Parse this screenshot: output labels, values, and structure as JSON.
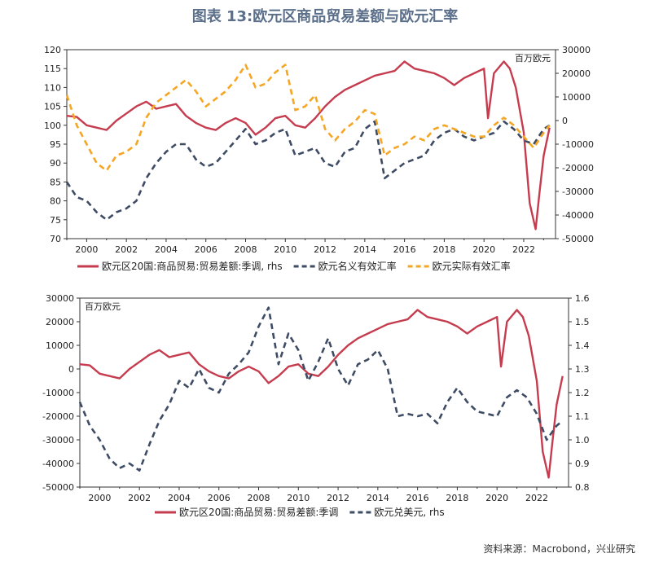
{
  "page": {
    "title": "图表 13:欧元区商品贸易差额与欧元汇率",
    "source": "资料来源：Macrobond，兴业研究"
  },
  "chart_data": [
    {
      "type": "line",
      "left_ticks": [
        "120",
        "115",
        "110",
        "105",
        "100",
        "95",
        "90",
        "85",
        "80",
        "75",
        "70"
      ],
      "left_range": [
        70,
        120
      ],
      "right_ticks": [
        "30000",
        "20000",
        "10000",
        "0",
        "-10000",
        "-20000",
        "-30000",
        "-40000",
        "-50000"
      ],
      "right_range": [
        -50000,
        30000
      ],
      "right_unit": "百万欧元",
      "x_range": [
        1999,
        2023.6
      ],
      "x_ticks": [
        "2000",
        "2002",
        "2004",
        "2006",
        "2008",
        "2010",
        "2012",
        "2014",
        "2016",
        "2018",
        "2020",
        "2022"
      ],
      "series": [
        {
          "name": "欧元区20国:商品贸易:贸易差额:季调, rhs",
          "axis": "right",
          "style": "solid",
          "color": "#c63c4f",
          "x": [
            1999.0,
            1999.5,
            2000.0,
            2000.5,
            2001.0,
            2001.5,
            2002.0,
            2002.5,
            2003.0,
            2003.5,
            2004.0,
            2004.5,
            2005.0,
            2005.5,
            2006.0,
            2006.5,
            2007.0,
            2007.5,
            2008.0,
            2008.5,
            2009.0,
            2009.5,
            2010.0,
            2010.5,
            2011.0,
            2011.5,
            2012.0,
            2012.5,
            2013.0,
            2013.5,
            2014.0,
            2014.5,
            2015.0,
            2015.5,
            2016.0,
            2016.5,
            2017.0,
            2017.5,
            2018.0,
            2018.5,
            2019.0,
            2019.5,
            2020.0,
            2020.2,
            2020.5,
            2021.0,
            2021.3,
            2021.6,
            2022.0,
            2022.3,
            2022.6,
            2022.8,
            2023.0,
            2023.3
          ],
          "y": [
            2000,
            1500,
            -2000,
            -3000,
            -4000,
            0,
            3000,
            6000,
            8000,
            5000,
            6000,
            7000,
            2000,
            -1000,
            -3000,
            -4000,
            -1000,
            1000,
            -1000,
            -6000,
            -3000,
            1000,
            2000,
            -2000,
            -3000,
            1000,
            6000,
            10000,
            13000,
            15000,
            17000,
            19000,
            20000,
            21000,
            25000,
            22000,
            21000,
            20000,
            18000,
            15000,
            18000,
            20000,
            22000,
            1000,
            20000,
            25000,
            22000,
            14000,
            -5000,
            -35000,
            -46000,
            -30000,
            -15000,
            -3000
          ]
        },
        {
          "name": "欧元名义有效汇率",
          "axis": "left",
          "style": "dash",
          "color": "#3e4b64",
          "x": [
            1999.0,
            1999.5,
            2000.0,
            2000.5,
            2001.0,
            2001.5,
            2002.0,
            2002.5,
            2003.0,
            2003.5,
            2004.0,
            2004.5,
            2005.0,
            2005.5,
            2006.0,
            2006.5,
            2007.0,
            2007.5,
            2008.0,
            2008.5,
            2009.0,
            2009.5,
            2010.0,
            2010.5,
            2011.0,
            2011.5,
            2012.0,
            2012.5,
            2013.0,
            2013.5,
            2014.0,
            2014.5,
            2015.0,
            2015.5,
            2016.0,
            2016.5,
            2017.0,
            2017.5,
            2018.0,
            2018.5,
            2019.0,
            2019.5,
            2020.0,
            2020.5,
            2021.0,
            2021.5,
            2022.0,
            2022.5,
            2023.0,
            2023.3
          ],
          "y": [
            85,
            81,
            80,
            77,
            75,
            77,
            78,
            80,
            86,
            90,
            93,
            95,
            95,
            91,
            89,
            90,
            93,
            96,
            99,
            95,
            96,
            98,
            99,
            92,
            93,
            94,
            90,
            89,
            93,
            94,
            99,
            101,
            86,
            88,
            90,
            91,
            92,
            96,
            98,
            99,
            97,
            96,
            97,
            98,
            101,
            99,
            96,
            95,
            99,
            100
          ]
        },
        {
          "name": "欧元实际有效汇率",
          "axis": "left",
          "style": "dash",
          "color": "#f5a623",
          "x": [
            1999.0,
            1999.5,
            2000.0,
            2000.5,
            2001.0,
            2001.5,
            2002.0,
            2002.5,
            2003.0,
            2003.5,
            2004.0,
            2004.5,
            2005.0,
            2005.5,
            2006.0,
            2006.5,
            2007.0,
            2007.5,
            2008.0,
            2008.5,
            2009.0,
            2009.5,
            2010.0,
            2010.5,
            2011.0,
            2011.5,
            2012.0,
            2012.5,
            2013.0,
            2013.5,
            2014.0,
            2014.5,
            2015.0,
            2015.5,
            2016.0,
            2016.5,
            2017.0,
            2017.5,
            2018.0,
            2018.5,
            2019.0,
            2019.5,
            2020.0,
            2020.5,
            2021.0,
            2021.5,
            2022.0,
            2022.5,
            2023.0,
            2023.3
          ],
          "y": [
            108,
            100,
            95,
            90,
            88,
            92,
            93,
            95,
            102,
            106,
            108,
            110,
            112,
            109,
            105,
            107,
            109,
            112,
            116,
            110,
            111,
            114,
            116,
            104,
            105,
            108,
            99,
            96,
            99,
            101,
            104,
            103,
            92,
            94,
            95,
            97,
            96,
            99,
            100,
            99,
            98,
            97,
            97,
            100,
            102,
            100,
            97,
            94,
            98,
            100
          ]
        }
      ]
    },
    {
      "type": "line",
      "left_ticks": [
        "30000",
        "20000",
        "10000",
        "0",
        "-10000",
        "-20000",
        "-30000",
        "-40000",
        "-50000"
      ],
      "left_range": [
        -50000,
        30000
      ],
      "left_unit": "百万欧元",
      "right_ticks": [
        "1.6",
        "1.5",
        "1.4",
        "1.3",
        "1.2",
        "1.1",
        "1.0",
        "0.9",
        "0.8"
      ],
      "right_range": [
        0.8,
        1.6
      ],
      "x_range": [
        1999,
        2023.6
      ],
      "x_ticks": [
        "2000",
        "2002",
        "2004",
        "2006",
        "2008",
        "2010",
        "2012",
        "2014",
        "2016",
        "2018",
        "2020",
        "2022"
      ],
      "series": [
        {
          "name": "欧元区20国:商品贸易:贸易差额:季调",
          "axis": "left",
          "style": "solid",
          "color": "#c63c4f",
          "x": [
            1999.0,
            1999.5,
            2000.0,
            2000.5,
            2001.0,
            2001.5,
            2002.0,
            2002.5,
            2003.0,
            2003.5,
            2004.0,
            2004.5,
            2005.0,
            2005.5,
            2006.0,
            2006.5,
            2007.0,
            2007.5,
            2008.0,
            2008.5,
            2009.0,
            2009.5,
            2010.0,
            2010.5,
            2011.0,
            2011.5,
            2012.0,
            2012.5,
            2013.0,
            2013.5,
            2014.0,
            2014.5,
            2015.0,
            2015.5,
            2016.0,
            2016.5,
            2017.0,
            2017.5,
            2018.0,
            2018.5,
            2019.0,
            2019.5,
            2020.0,
            2020.2,
            2020.5,
            2021.0,
            2021.3,
            2021.6,
            2022.0,
            2022.3,
            2022.6,
            2022.8,
            2023.0,
            2023.3
          ],
          "y": [
            2000,
            1500,
            -2000,
            -3000,
            -4000,
            0,
            3000,
            6000,
            8000,
            5000,
            6000,
            7000,
            2000,
            -1000,
            -3000,
            -4000,
            -1000,
            1000,
            -1000,
            -6000,
            -3000,
            1000,
            2000,
            -2000,
            -3000,
            1000,
            6000,
            10000,
            13000,
            15000,
            17000,
            19000,
            20000,
            21000,
            25000,
            22000,
            21000,
            20000,
            18000,
            15000,
            18000,
            20000,
            22000,
            1000,
            20000,
            25000,
            22000,
            14000,
            -5000,
            -35000,
            -46000,
            -30000,
            -15000,
            -3000
          ]
        },
        {
          "name": "欧元兑美元, rhs",
          "axis": "right",
          "style": "dash",
          "color": "#3e4b64",
          "x": [
            1999.0,
            1999.5,
            2000.0,
            2000.5,
            2001.0,
            2001.5,
            2002.0,
            2002.5,
            2003.0,
            2003.5,
            2004.0,
            2004.5,
            2005.0,
            2005.5,
            2006.0,
            2006.5,
            2007.0,
            2007.5,
            2008.0,
            2008.5,
            2009.0,
            2009.5,
            2010.0,
            2010.5,
            2011.0,
            2011.5,
            2012.0,
            2012.5,
            2013.0,
            2013.5,
            2014.0,
            2014.5,
            2015.0,
            2015.5,
            2016.0,
            2016.5,
            2017.0,
            2017.5,
            2018.0,
            2018.5,
            2019.0,
            2019.5,
            2020.0,
            2020.5,
            2021.0,
            2021.5,
            2022.0,
            2022.5,
            2023.0,
            2023.3
          ],
          "y": [
            1.16,
            1.06,
            1.0,
            0.92,
            0.88,
            0.9,
            0.87,
            0.98,
            1.08,
            1.15,
            1.25,
            1.22,
            1.3,
            1.22,
            1.2,
            1.28,
            1.32,
            1.37,
            1.48,
            1.56,
            1.32,
            1.45,
            1.38,
            1.25,
            1.33,
            1.43,
            1.3,
            1.23,
            1.32,
            1.34,
            1.38,
            1.3,
            1.1,
            1.11,
            1.1,
            1.11,
            1.07,
            1.16,
            1.22,
            1.16,
            1.12,
            1.11,
            1.1,
            1.18,
            1.21,
            1.18,
            1.11,
            1.0,
            1.06,
            1.08
          ]
        }
      ]
    }
  ]
}
